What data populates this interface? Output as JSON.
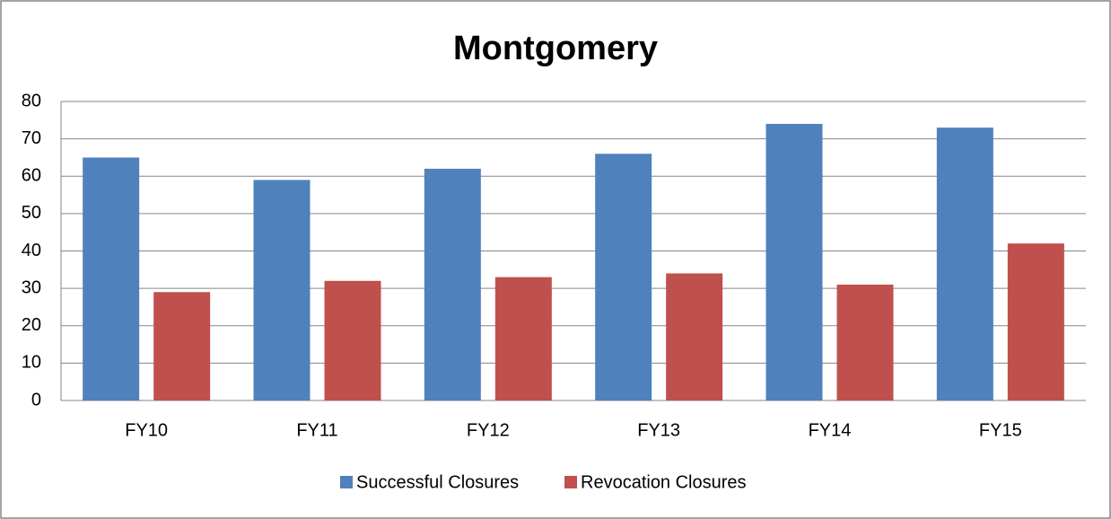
{
  "chart_data": {
    "type": "bar",
    "title": "Montgomery",
    "categories": [
      "FY10",
      "FY11",
      "FY12",
      "FY13",
      "FY14",
      "FY15"
    ],
    "series": [
      {
        "name": "Successful Closures",
        "color": "#4f81bd",
        "values": [
          65,
          59,
          62,
          66,
          74,
          73
        ]
      },
      {
        "name": "Revocation Closures",
        "color": "#c0504d",
        "values": [
          29,
          32,
          33,
          34,
          31,
          42
        ]
      }
    ],
    "ylim": [
      0,
      80
    ],
    "yticks": [
      0,
      10,
      20,
      30,
      40,
      50,
      60,
      70,
      80
    ],
    "grid": true,
    "legend": "bottom"
  }
}
